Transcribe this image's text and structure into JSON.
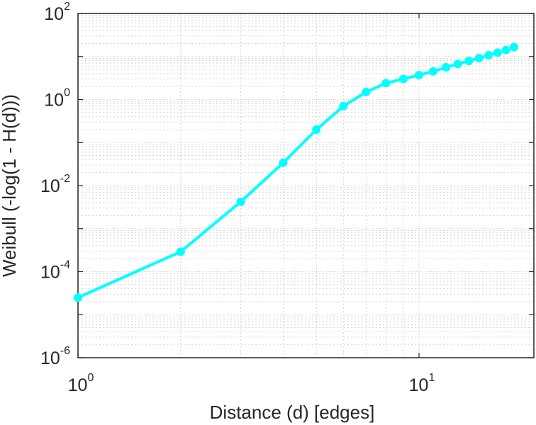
{
  "chart_data": {
    "type": "line",
    "xlabel": "Distance (d) [edges]",
    "ylabel": "Weibull (-log(1 - H(d)))",
    "xscale": "log",
    "yscale": "log",
    "xlim": [
      1,
      20
    ],
    "ylim": [
      1e-06,
      100
    ],
    "grid": true,
    "x_ticks": [
      {
        "value": 1,
        "base": "10",
        "exp": "0"
      },
      {
        "value": 10,
        "base": "10",
        "exp": "1"
      }
    ],
    "y_ticks": [
      {
        "value": 100,
        "base": "10",
        "exp": "2"
      },
      {
        "value": 1,
        "base": "10",
        "exp": "0"
      },
      {
        "value": 0.01,
        "base": "10",
        "exp": "-2"
      },
      {
        "value": 0.0001,
        "base": "10",
        "exp": "-4"
      },
      {
        "value": 1e-06,
        "base": "10",
        "exp": "-6"
      }
    ],
    "series": [
      {
        "color": "#00ffff",
        "marker": "circle",
        "x": [
          1,
          2,
          3,
          4,
          5,
          6,
          7,
          8,
          9,
          10,
          11,
          12,
          13,
          14,
          15,
          16,
          17,
          18,
          19
        ],
        "y": [
          2.5e-05,
          0.00029,
          0.0042,
          0.034,
          0.2,
          0.7,
          1.5,
          2.4,
          3.0,
          3.7,
          4.5,
          5.6,
          6.7,
          7.9,
          9.2,
          10.7,
          12.3,
          14.1,
          16.5
        ]
      }
    ]
  }
}
